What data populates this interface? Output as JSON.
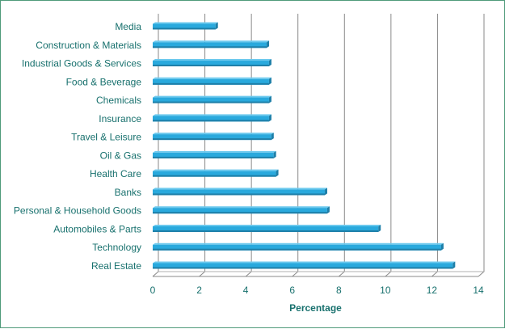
{
  "chart_data": {
    "type": "bar",
    "orientation": "horizontal",
    "categories": [
      "Media",
      "Construction & Materials",
      "Industrial Goods & Services",
      "Food & Beverage",
      "Chemicals",
      "Insurance",
      "Travel & Leisure",
      "Oil & Gas",
      "Health Care",
      "Banks",
      "Personal & Household Goods",
      "Automobiles & Parts",
      "Technology",
      "Real Estate"
    ],
    "values": [
      2.7,
      4.9,
      5.0,
      5.0,
      5.0,
      5.0,
      5.1,
      5.2,
      5.3,
      7.4,
      7.5,
      9.7,
      12.4,
      12.9
    ],
    "xlabel": "Percentage",
    "ylabel": "",
    "xlim": [
      0,
      14
    ],
    "xticks": [
      0,
      2,
      4,
      6,
      8,
      10,
      12,
      14
    ],
    "grid": "vertical",
    "legend": "none",
    "bar_color": "#29a9dd",
    "bar_color_dark": "#1e7fa8",
    "text_color": "#17706d",
    "grid_color": "#8a8a8a"
  }
}
